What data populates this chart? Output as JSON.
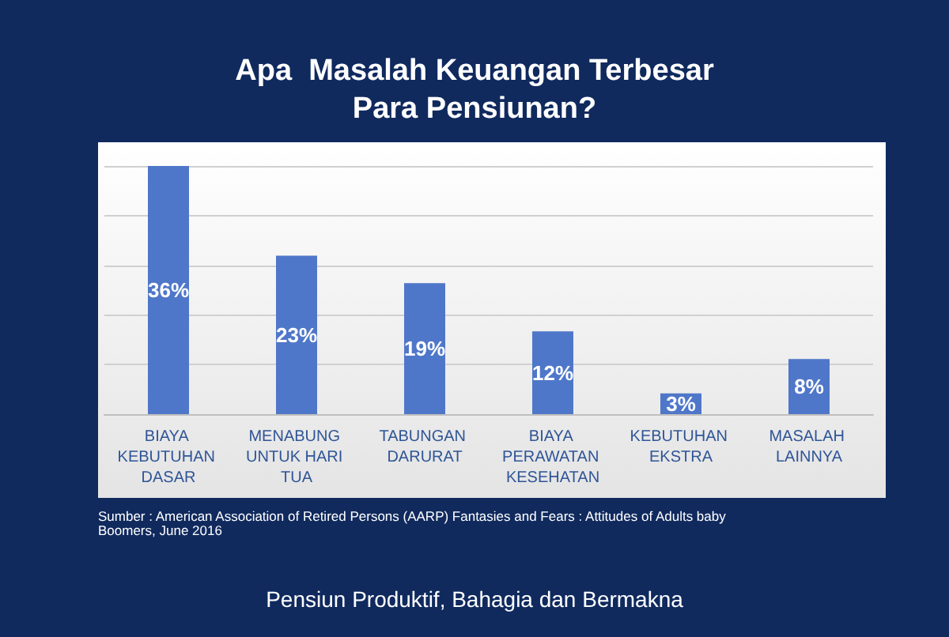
{
  "chart_data": {
    "type": "bar",
    "title": "Apa  Masalah Keuangan Terbesar\nPara Pensiunan?",
    "categories": [
      "BIAYA KEBUTUHAN DASAR",
      "MENABUNG UNTUK HARI TUA",
      "TABUNGAN DARURAT",
      "BIAYA PERAWATAN KESEHATAN",
      "KEBUTUHAN EKSTRA",
      "MASALAH LAINNYA"
    ],
    "values": [
      36,
      23,
      19,
      12,
      3,
      8
    ],
    "value_labels": [
      "36%",
      "23%",
      "19%",
      "12%",
      "3%",
      "8%"
    ],
    "color": "#4f77c9",
    "grid": true,
    "annotations": [
      "Sumber : American Association of Retired Persons (AARP) Fantasies and Fears : Attitudes of Adults baby Boomers, June 2016",
      "Pensiun Produktif, Bahagia dan Bermakna"
    ]
  }
}
